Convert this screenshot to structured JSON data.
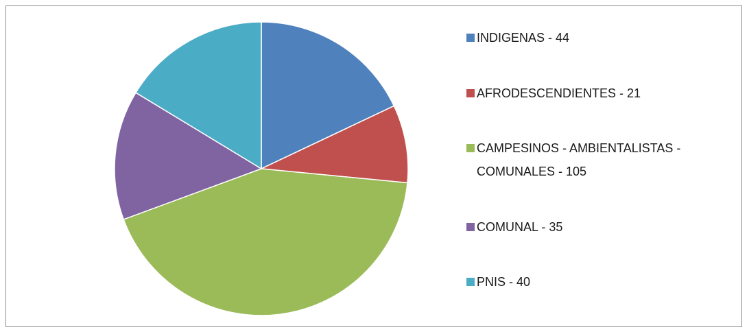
{
  "chart_data": {
    "type": "pie",
    "categories": [
      "INDIGENAS - 44",
      "AFRODESCENDIENTES - 21",
      "CAMPESINOS - AMBIENTALISTAS - COMUNALES - 105",
      "COMUNAL - 35",
      "PNIS - 40"
    ],
    "values": [
      44,
      21,
      105,
      35,
      40
    ],
    "colors": [
      "#4f81bd",
      "#c0504d",
      "#9bbb59",
      "#8064a2",
      "#4bacc6"
    ],
    "legend": "right"
  }
}
